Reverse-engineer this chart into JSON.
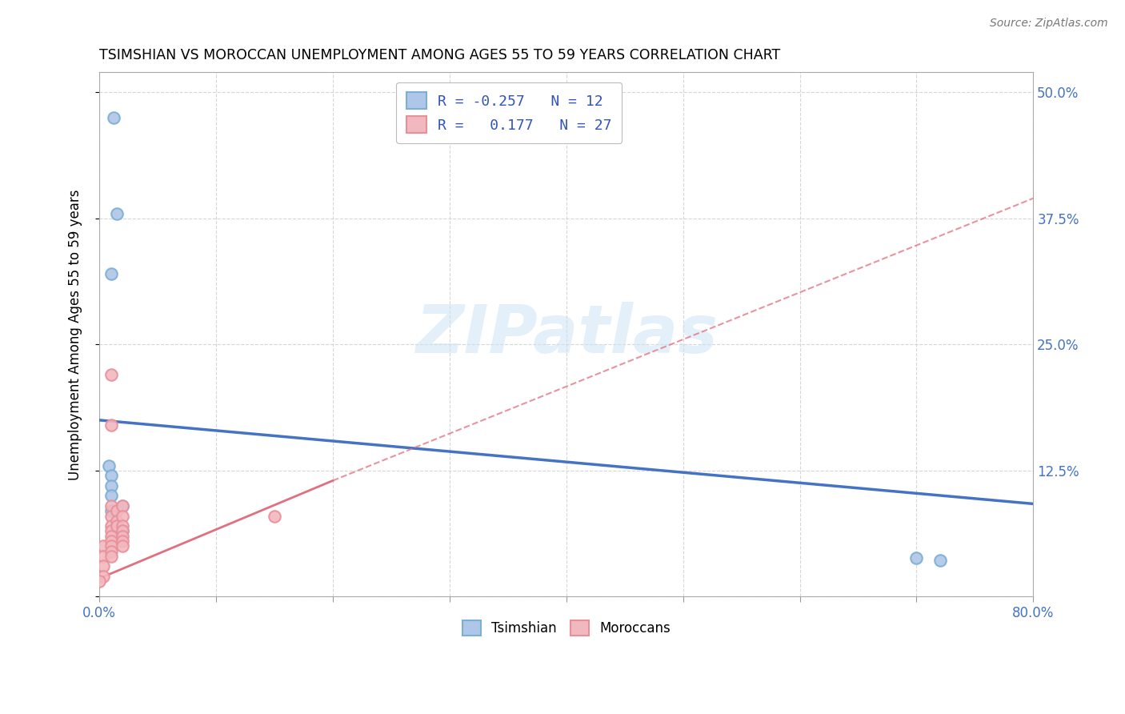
{
  "title": "TSIMSHIAN VS MOROCCAN UNEMPLOYMENT AMONG AGES 55 TO 59 YEARS CORRELATION CHART",
  "source": "Source: ZipAtlas.com",
  "ylabel": "Unemployment Among Ages 55 to 59 years",
  "xlim": [
    0.0,
    0.8
  ],
  "ylim": [
    0.0,
    0.52
  ],
  "xticks": [
    0.0,
    0.1,
    0.2,
    0.3,
    0.4,
    0.5,
    0.6,
    0.7,
    0.8
  ],
  "xticklabels": [
    "0.0%",
    "",
    "",
    "",
    "",
    "",
    "",
    "",
    "80.0%"
  ],
  "yticks": [
    0.0,
    0.125,
    0.25,
    0.375,
    0.5
  ],
  "yticklabels": [
    "",
    "12.5%",
    "25.0%",
    "37.5%",
    "50.0%"
  ],
  "tsimshian_x": [
    0.012,
    0.015,
    0.01,
    0.008,
    0.01,
    0.01,
    0.01,
    0.01,
    0.02,
    0.02,
    0.7,
    0.72
  ],
  "tsimshian_y": [
    0.475,
    0.38,
    0.32,
    0.13,
    0.12,
    0.11,
    0.1,
    0.085,
    0.09,
    0.065,
    0.038,
    0.036
  ],
  "moroccan_x": [
    0.003,
    0.003,
    0.003,
    0.003,
    0.01,
    0.01,
    0.01,
    0.01,
    0.01,
    0.01,
    0.01,
    0.01,
    0.01,
    0.01,
    0.01,
    0.015,
    0.015,
    0.015,
    0.02,
    0.02,
    0.02,
    0.02,
    0.02,
    0.02,
    0.02,
    0.15,
    0.0
  ],
  "moroccan_y": [
    0.05,
    0.04,
    0.03,
    0.02,
    0.22,
    0.17,
    0.09,
    0.08,
    0.07,
    0.065,
    0.06,
    0.055,
    0.05,
    0.045,
    0.04,
    0.085,
    0.075,
    0.07,
    0.09,
    0.08,
    0.07,
    0.065,
    0.06,
    0.055,
    0.05,
    0.08,
    0.015
  ],
  "tsimshian_color": "#7bafd4",
  "tsimshian_fill": "#aec6e8",
  "moroccan_color": "#e8909a",
  "moroccan_fill": "#f2b8bf",
  "trend_tsimshian_color": "#4472c4",
  "trend_moroccan_color": "#e07080",
  "trend_tsimshian_y0": 0.175,
  "trend_tsimshian_y1": 0.092,
  "trend_moroccan_y0": 0.018,
  "trend_moroccan_y1_solid": 0.115,
  "trend_moroccan_y1_dashed": 0.395,
  "trend_moroccan_solid_end_x": 0.2,
  "legend_line1": "R = -0.257   N = 12",
  "legend_line2": "R =   0.177   N = 27",
  "watermark_text": "ZIPatlas",
  "background_color": "#ffffff",
  "grid_color": "#cccccc",
  "marker_size": 110,
  "title_fontsize": 12.5,
  "axis_label_fontsize": 12,
  "tick_fontsize": 12,
  "tick_color": "#4472c4"
}
